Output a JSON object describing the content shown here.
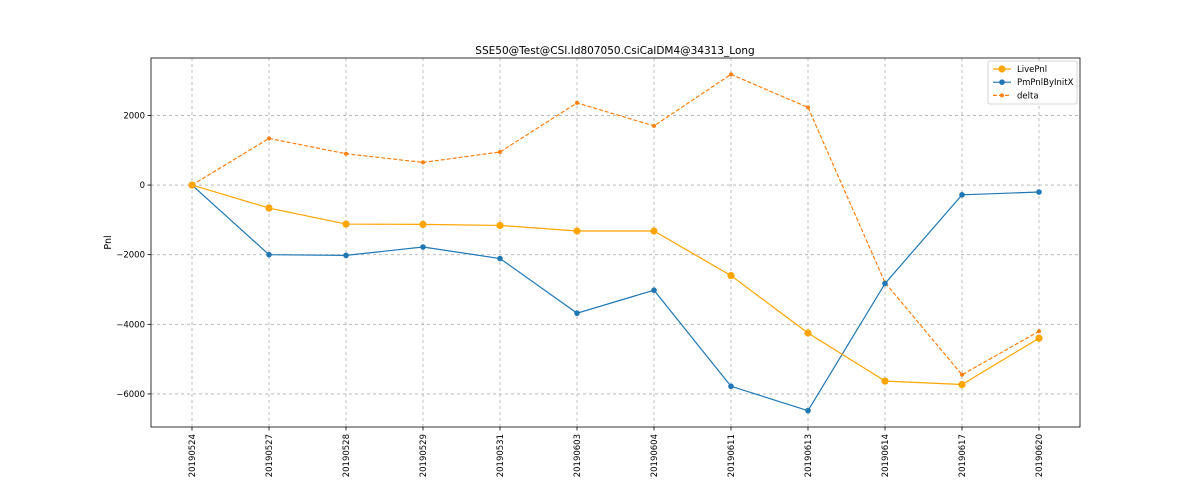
{
  "chart_data": {
    "type": "line",
    "title": "SSE50@Test@CSI.Id807050.CsiCalDM4@34313_Long",
    "xlabel": "",
    "ylabel": "Pnl",
    "categories": [
      "20190524",
      "20190527",
      "20190528",
      "20190529",
      "20190531",
      "20190603",
      "20190604",
      "20190611",
      "20190613",
      "20190614",
      "20190617",
      "20190620"
    ],
    "ylim": [
      -6950,
      3650
    ],
    "yticks": [
      -6000,
      -4000,
      -2000,
      0,
      2000
    ],
    "ytick_labels": [
      "−6000",
      "−4000",
      "−2000",
      "0",
      "2000"
    ],
    "grid": true,
    "legend_position": "top-right",
    "series": [
      {
        "name": "LivePnl",
        "color": "#FFA500",
        "line_style": "solid",
        "marker": "large-circle",
        "values": [
          0,
          -660,
          -1120,
          -1130,
          -1160,
          -1320,
          -1320,
          -2600,
          -4250,
          -5630,
          -5730,
          -4400
        ]
      },
      {
        "name": "PmPnlByInitX",
        "color": "#1F77B4",
        "line_style": "solid",
        "marker": "circle",
        "values": [
          0,
          -2000,
          -2020,
          -1780,
          -2110,
          -3680,
          -3020,
          -5780,
          -6480,
          -2830,
          -280,
          -200
        ]
      },
      {
        "name": "delta",
        "color": "#FF7F0E",
        "line_style": "dashed",
        "marker": "small-circle",
        "values": [
          0,
          1340,
          900,
          650,
          950,
          2360,
          1700,
          3180,
          2230,
          -2800,
          -5450,
          -4200
        ]
      }
    ]
  }
}
